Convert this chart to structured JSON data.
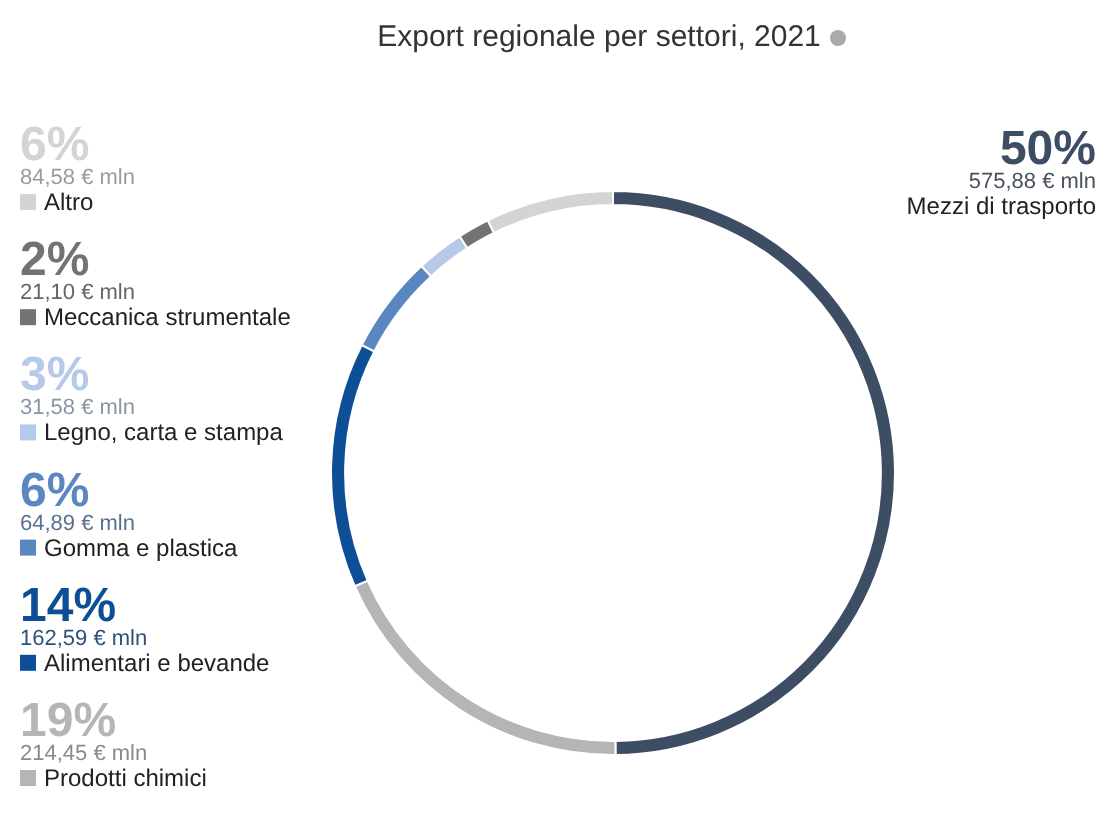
{
  "chart_data": {
    "type": "donut",
    "title": "Export regionale per settori, 2021",
    "categories": [
      "Mezzi di trasporto",
      "Prodotti chimici",
      "Alimentari e bevande",
      "Gomma e plastica",
      "Legno, carta e stampa",
      "Meccanica strumentale",
      "Altro"
    ],
    "values": [
      575.88,
      214.45,
      162.59,
      64.89,
      31.58,
      21.1,
      84.58
    ],
    "colors": [
      "#3d4d63",
      "#b5b5b5",
      "#0d4f96",
      "#5a87c0",
      "#b7c9e8",
      "#737373",
      "#d4d4d4"
    ],
    "value_labels": [
      "50%\n575,88 € mln",
      "19%\n214,45 € mln",
      "14%\n162,59 € mln",
      "6%\n64,89 € mln",
      "3%\n31,58 € mln",
      "2%\n21,10 € mln",
      "6%\n84,58 € mln"
    ],
    "legend": "left"
  }
}
